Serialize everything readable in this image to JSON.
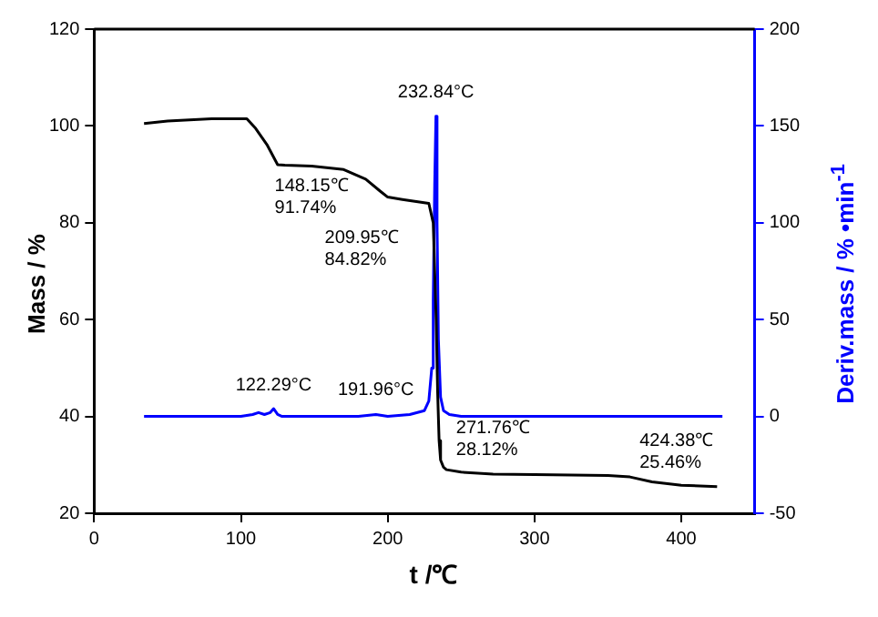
{
  "chart_data": {
    "type": "line",
    "xlabel": "t /℃",
    "ylabel": "Mass / %",
    "y2label": "Deriv.mass / % •min$^{-1}$",
    "xlim": [
      0,
      450
    ],
    "xticks": [
      0,
      100,
      200,
      300,
      400
    ],
    "ylim": [
      20,
      120
    ],
    "yticks": [
      20,
      40,
      60,
      80,
      100,
      120
    ],
    "y2lim": [
      -50,
      200
    ],
    "y2ticks": [
      -50,
      0,
      50,
      100,
      150,
      200
    ],
    "grid": false,
    "legend": false,
    "marker": "none",
    "line_style": "solid",
    "series": [
      {
        "color": "#000000",
        "x": [
          34,
          50,
          80,
          104,
          110,
          118,
          125,
          130,
          148.15,
          170,
          185,
          195,
          200,
          210,
          228,
          231,
          233,
          234,
          235,
          236,
          238,
          240,
          250,
          271.76,
          300,
          350,
          365,
          380,
          400,
          424.38
        ],
        "values": [
          100.5,
          101,
          101.5,
          101.5,
          99.5,
          96,
          92,
          91.9,
          91.7,
          91,
          89,
          86.5,
          85.3,
          84.8,
          84,
          80,
          60,
          45,
          35,
          31,
          29.5,
          29,
          28.5,
          28.1,
          28,
          27.8,
          27.5,
          26.5,
          25.8,
          25.5
        ]
      },
      {
        "color": "#0000ff",
        "axis": "y2",
        "x": [
          34,
          100,
          108,
          112,
          116,
          120,
          122.29,
          125,
          128,
          150,
          180,
          191.96,
          200,
          215,
          225,
          228,
          230,
          231,
          232,
          232.84,
          233.6,
          234.5,
          236,
          238,
          242,
          250,
          300,
          428
        ],
        "values": [
          0,
          0,
          1,
          2,
          1,
          2,
          4,
          1,
          0,
          0,
          0,
          1,
          0,
          1,
          3,
          8,
          25,
          60,
          120,
          155,
          100,
          40,
          10,
          3,
          1,
          0,
          0,
          0
        ]
      }
    ],
    "annotations": [
      {
        "text": "148.15℃\n91.74%",
        "x": 148.15,
        "y": 91.74
      },
      {
        "text": "209.95℃\n84.82%",
        "x": 209.95,
        "y": 84.82
      },
      {
        "text": "232.84°C",
        "x": 232.84,
        "y": 102
      },
      {
        "text": "122.29°C",
        "x": 122.29,
        "y": 41.6
      },
      {
        "text": "191.96°C",
        "x": 191.96,
        "y": 40.6
      },
      {
        "text": "271.76℃\n28.12%",
        "x": 271.76,
        "y": 28.12
      },
      {
        "text": "424.38℃\n25.46%",
        "x": 424.38,
        "y": 25.46
      }
    ]
  }
}
